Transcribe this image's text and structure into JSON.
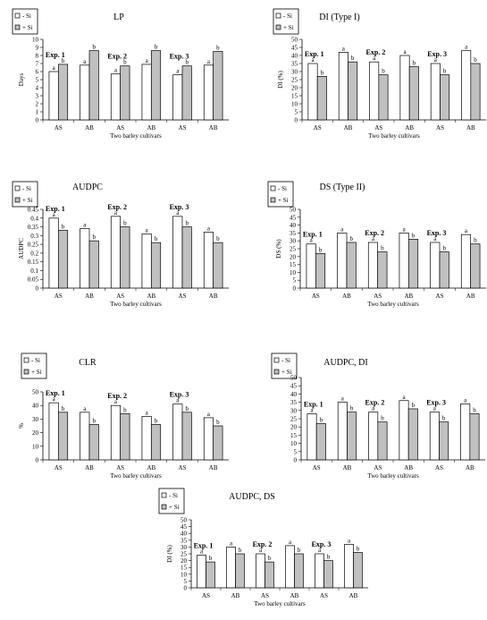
{
  "colors": {
    "minus_si": "#ffffff",
    "plus_si": "#c0c0c0",
    "ink": "#000000"
  },
  "legend": [
    "- Si",
    "+ Si"
  ],
  "chart_data": [
    {
      "type": "bar",
      "title": "LP",
      "ylabel": "Days",
      "xlabel": "Two barley cultivars",
      "ylim": [
        0,
        10
      ],
      "yticks": [
        0,
        1,
        2,
        3,
        4,
        5,
        6,
        7,
        8,
        9,
        10
      ],
      "categories": [
        "AS",
        "AB",
        "AS",
        "AB",
        "AS",
        "AB"
      ],
      "groups": [
        "Exp. 1",
        "Exp. 2",
        "Exp. 3"
      ],
      "series": [
        {
          "name": "- Si",
          "values": [
            6,
            6.8,
            5.7,
            6.9,
            5.6,
            6.8
          ]
        },
        {
          "name": "+ Si",
          "values": [
            6.9,
            8.6,
            6.7,
            8.6,
            6.7,
            8.5
          ]
        }
      ],
      "labels": [
        [
          "a",
          "b"
        ],
        [
          "a",
          "b"
        ],
        [
          "a",
          "b"
        ],
        [
          "a",
          "b"
        ],
        [
          "a",
          "b"
        ],
        [
          "a",
          "b"
        ]
      ]
    },
    {
      "type": "bar",
      "title": "DI (Type I)",
      "ylabel": "DI (%)",
      "xlabel": "Two barley cultivars",
      "ylim": [
        0,
        50
      ],
      "yticks": [
        0,
        5,
        10,
        15,
        20,
        25,
        30,
        35,
        40,
        45,
        50
      ],
      "categories": [
        "AS",
        "AB",
        "AS",
        "AB",
        "AS",
        "AB"
      ],
      "groups": [
        "Exp. 1",
        "Exp. 2",
        "Exp. 3"
      ],
      "series": [
        {
          "name": "- Si",
          "values": [
            35,
            42,
            36,
            40,
            35,
            43
          ]
        },
        {
          "name": "+ Si",
          "values": [
            27,
            36,
            28,
            33,
            28,
            35
          ]
        }
      ],
      "labels": [
        [
          "a",
          "b"
        ],
        [
          "a",
          "b"
        ],
        [
          "a",
          "b"
        ],
        [
          "a",
          "b"
        ],
        [
          "a",
          "b"
        ],
        [
          "a",
          "b"
        ]
      ]
    },
    {
      "type": "bar",
      "title": "AUDPC",
      "ylabel": "AUDPC",
      "xlabel": "Two barley cultivars",
      "ylim": [
        0,
        0.45
      ],
      "yticks": [
        0,
        0.05,
        0.1,
        0.15,
        0.2,
        0.25,
        0.3,
        0.35,
        0.4,
        0.45
      ],
      "categories": [
        "AS",
        "AB",
        "AS",
        "AB",
        "AS",
        "AB"
      ],
      "groups": [
        "Exp. 1",
        "Exp. 2",
        "Exp. 3"
      ],
      "series": [
        {
          "name": "- Si",
          "values": [
            0.4,
            0.34,
            0.41,
            0.31,
            0.41,
            0.32
          ]
        },
        {
          "name": "+ Si",
          "values": [
            0.33,
            0.27,
            0.35,
            0.26,
            0.35,
            0.26
          ]
        }
      ],
      "labels": [
        [
          "a",
          "b"
        ],
        [
          "a",
          "b"
        ],
        [
          "a",
          "b"
        ],
        [
          "a",
          "b"
        ],
        [
          "a",
          "b"
        ],
        [
          "a",
          "b"
        ]
      ]
    },
    {
      "type": "bar",
      "title": "DS (Type II)",
      "ylabel": "DS (%)",
      "xlabel": "Two barley cultivars",
      "ylim": [
        0,
        50
      ],
      "yticks": [
        0,
        5,
        10,
        15,
        20,
        25,
        30,
        35,
        40,
        45,
        50
      ],
      "categories": [
        "AS",
        "AB",
        "AS",
        "AB",
        "AS",
        "AB"
      ],
      "groups": [
        "Exp. 1",
        "Exp. 2",
        "Exp. 3"
      ],
      "series": [
        {
          "name": "- Si",
          "values": [
            28,
            35,
            29,
            35,
            29,
            34
          ]
        },
        {
          "name": "+ Si",
          "values": [
            22,
            29,
            23,
            31,
            23,
            28
          ]
        }
      ],
      "labels": [
        [
          "a",
          "b"
        ],
        [
          "a",
          "b"
        ],
        [
          "a",
          "b"
        ],
        [
          "a",
          "b"
        ],
        [
          "a",
          "b"
        ],
        [
          "a",
          "b"
        ]
      ]
    },
    {
      "type": "bar",
      "title": "CLR",
      "ylabel": "%",
      "xlabel": "Two barley cultivars",
      "ylim": [
        0,
        50
      ],
      "yticks": [
        0,
        10,
        20,
        30,
        40,
        50
      ],
      "categories": [
        "AS",
        "AB",
        "AS",
        "AB",
        "AS",
        "AB"
      ],
      "groups": [
        "Exp. 1",
        "Exp. 2",
        "Exp. 3"
      ],
      "series": [
        {
          "name": "- Si",
          "values": [
            42,
            35,
            40,
            32,
            41,
            31
          ]
        },
        {
          "name": "+ Si",
          "values": [
            35,
            26,
            34,
            26,
            35,
            25
          ]
        }
      ],
      "labels": [
        [
          "a",
          "b"
        ],
        [
          "a",
          "b"
        ],
        [
          "a",
          "b"
        ],
        [
          "a",
          "b"
        ],
        [
          "a",
          "b"
        ],
        [
          "a",
          "b"
        ]
      ]
    },
    {
      "type": "bar",
      "title": "AUDPC, DI",
      "ylabel": "",
      "xlabel": "Two barley cultivars",
      "ylim": [
        0,
        50
      ],
      "yticks": [
        0,
        5,
        10,
        15,
        20,
        25,
        30,
        35,
        40,
        45,
        50
      ],
      "categories": [
        "AS",
        "AB",
        "AS",
        "AB",
        "AS",
        "AB"
      ],
      "groups": [
        "Exp. 1",
        "Exp. 2",
        "Exp. 3"
      ],
      "series": [
        {
          "name": "- Si",
          "values": [
            28,
            35,
            29,
            36,
            29,
            34
          ]
        },
        {
          "name": "+ Si",
          "values": [
            22,
            29,
            23,
            31,
            23,
            28
          ]
        }
      ],
      "labels": [
        [
          "a",
          "b"
        ],
        [
          "a",
          "b"
        ],
        [
          "a",
          "b"
        ],
        [
          "a",
          "b"
        ],
        [
          "a",
          "b"
        ],
        [
          "a",
          "b"
        ]
      ]
    },
    {
      "type": "bar",
      "title": "AUDPC, DS",
      "ylabel": "DI (%)",
      "xlabel": "Two barley cultivars",
      "ylim": [
        0,
        50
      ],
      "yticks": [
        0,
        5,
        10,
        15,
        20,
        25,
        30,
        35,
        40,
        45,
        50
      ],
      "categories": [
        "AS",
        "AB",
        "AS",
        "AB",
        "AS",
        "AB"
      ],
      "groups": [
        "Exp. 1",
        "Exp. 2",
        "Exp. 3"
      ],
      "series": [
        {
          "name": "- Si",
          "values": [
            24,
            30,
            25,
            31,
            25,
            32
          ]
        },
        {
          "name": "+ Si",
          "values": [
            19,
            25,
            19,
            25,
            20,
            26
          ]
        }
      ],
      "labels": [
        [
          "a",
          "b"
        ],
        [
          "a",
          "b"
        ],
        [
          "a",
          "b"
        ],
        [
          "a",
          "b"
        ],
        [
          "a",
          "b"
        ],
        [
          "a",
          "b"
        ]
      ]
    }
  ]
}
